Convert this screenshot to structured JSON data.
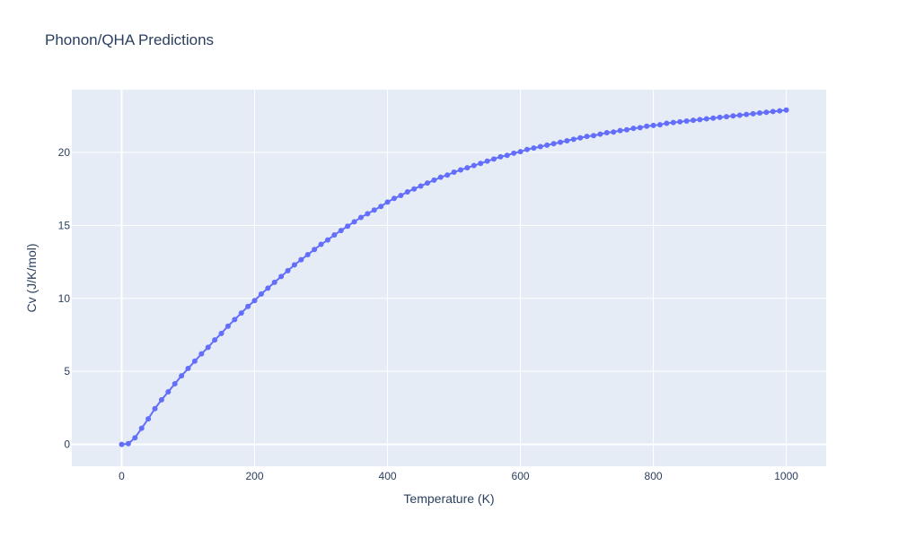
{
  "chart_data": {
    "type": "line",
    "title": "Phonon/QHA Predictions",
    "xlabel": "Temperature (K)",
    "ylabel": "Cv (J/K/mol)",
    "xlim": [
      -75,
      1060
    ],
    "ylim": [
      -1.5,
      24.3
    ],
    "xticks": [
      0,
      200,
      400,
      600,
      800,
      1000
    ],
    "yticks": [
      0,
      5,
      10,
      15,
      20
    ],
    "grid": true,
    "line_color": "#636efa",
    "plot_bg": "#e5ecf6",
    "series": [
      {
        "x": [
          0,
          10,
          20,
          30,
          40,
          50,
          60,
          70,
          80,
          90,
          100,
          110,
          120,
          130,
          140,
          150,
          160,
          170,
          180,
          190,
          200,
          210,
          220,
          230,
          240,
          250,
          260,
          270,
          280,
          290,
          300,
          310,
          320,
          330,
          340,
          350,
          360,
          370,
          380,
          390,
          400,
          410,
          420,
          430,
          440,
          450,
          460,
          470,
          480,
          490,
          500,
          510,
          520,
          530,
          540,
          550,
          560,
          570,
          580,
          590,
          600,
          610,
          620,
          630,
          640,
          650,
          660,
          670,
          680,
          690,
          700,
          710,
          720,
          730,
          740,
          750,
          760,
          770,
          780,
          790,
          800,
          810,
          820,
          830,
          840,
          850,
          860,
          870,
          880,
          890,
          900,
          910,
          920,
          930,
          940,
          950,
          960,
          970,
          980,
          990,
          1000
        ],
        "y": [
          0.0,
          0.05,
          0.45,
          1.1,
          1.75,
          2.45,
          3.05,
          3.6,
          4.15,
          4.7,
          5.2,
          5.7,
          6.2,
          6.65,
          7.15,
          7.6,
          8.1,
          8.55,
          9.0,
          9.45,
          9.85,
          10.3,
          10.7,
          11.1,
          11.5,
          11.9,
          12.3,
          12.65,
          13.0,
          13.35,
          13.7,
          14.0,
          14.35,
          14.65,
          14.95,
          15.25,
          15.55,
          15.8,
          16.05,
          16.3,
          16.6,
          16.85,
          17.05,
          17.3,
          17.5,
          17.7,
          17.9,
          18.1,
          18.3,
          18.45,
          18.65,
          18.8,
          18.95,
          19.1,
          19.25,
          19.4,
          19.55,
          19.7,
          19.8,
          19.95,
          20.05,
          20.2,
          20.3,
          20.4,
          20.5,
          20.6,
          20.7,
          20.8,
          20.9,
          21.0,
          21.1,
          21.15,
          21.25,
          21.35,
          21.4,
          21.5,
          21.55,
          21.65,
          21.7,
          21.8,
          21.85,
          21.9,
          22.0,
          22.05,
          22.1,
          22.15,
          22.2,
          22.25,
          22.3,
          22.35,
          22.4,
          22.45,
          22.5,
          22.55,
          22.6,
          22.65,
          22.7,
          22.75,
          22.8,
          22.85,
          22.9
        ]
      }
    ]
  }
}
